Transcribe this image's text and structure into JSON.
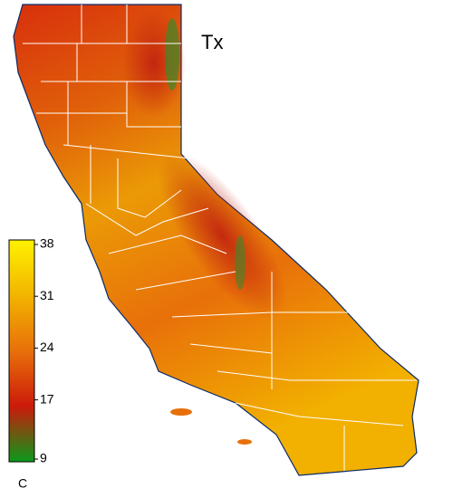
{
  "map": {
    "title": "Tx",
    "colorbar": {
      "label": "C",
      "range": [
        9,
        38
      ],
      "ticks": [
        9,
        17,
        24,
        31,
        38
      ],
      "colors": [
        "#0a9a1a",
        "#cc1a0a",
        "#e8700a",
        "#f2b400",
        "#fff200"
      ]
    }
  }
}
